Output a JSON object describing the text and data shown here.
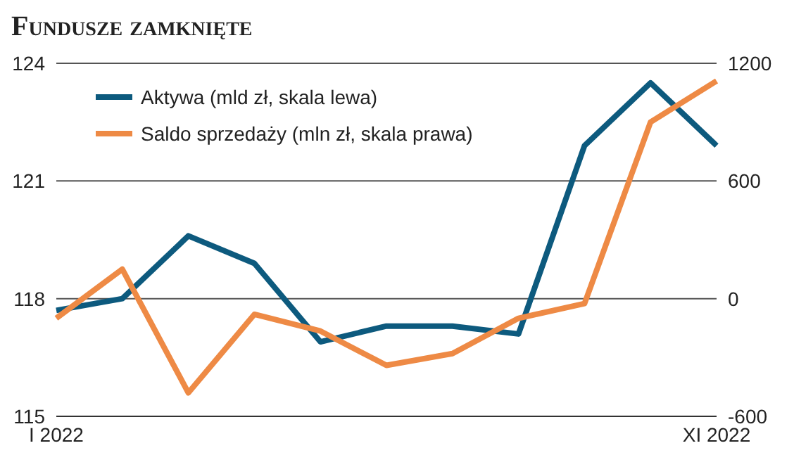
{
  "chart_data": {
    "type": "line",
    "title": "Fundusze zamknięte",
    "categories": [
      "I 2022",
      null,
      null,
      null,
      null,
      null,
      null,
      null,
      null,
      null,
      "XI 2022"
    ],
    "series": [
      {
        "name": "Aktywa (mld zł, skala lewa)",
        "color": "#0d5a7e",
        "values": [
          117.7,
          118.0,
          119.6,
          118.9,
          116.9,
          117.3,
          117.3,
          117.1,
          121.9,
          123.5,
          121.9
        ]
      },
      {
        "name": "Saldo sprzedaży (mln zł, skala prawa)",
        "color": "#ee8a45",
        "axis": "y2",
        "values": [
          -100,
          150,
          -480,
          -80,
          -165,
          -340,
          -280,
          -100,
          -25,
          900,
          1110
        ]
      }
    ],
    "ylim": [
      115,
      124
    ],
    "yticks": [
      115,
      118,
      121,
      124
    ],
    "y2lim": [
      -600,
      1200
    ],
    "y2ticks": [
      -600,
      0,
      600,
      1200
    ],
    "grid": "y",
    "legend": "top left",
    "marker": "none",
    "line_style": "solid"
  }
}
